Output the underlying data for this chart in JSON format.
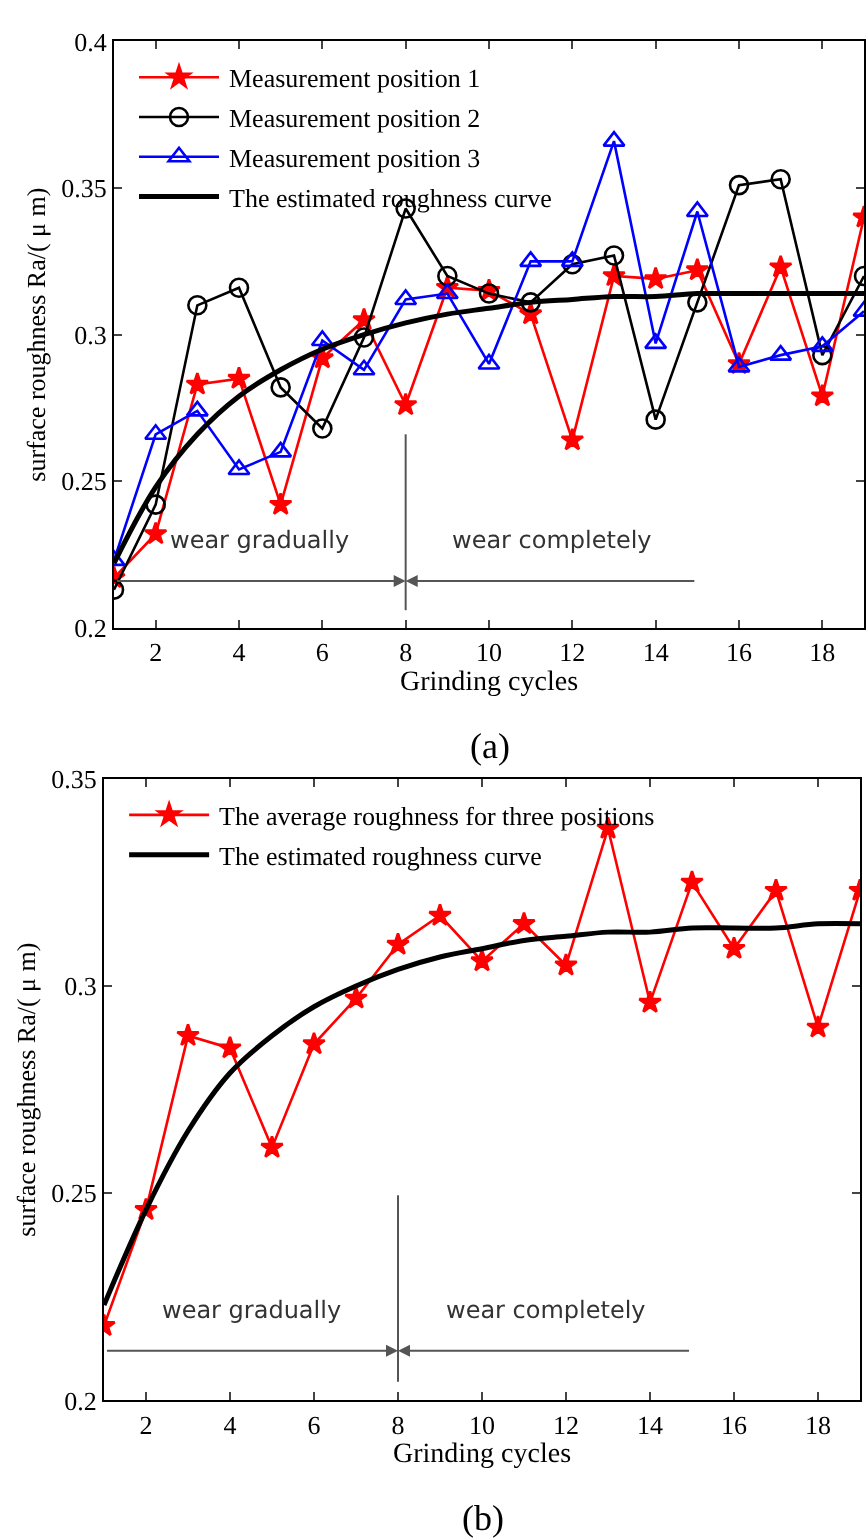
{
  "chart_data": [
    {
      "type": "line",
      "xlabel": "Grinding cycles",
      "ylabel": "surface roughness Ra/( μ m)",
      "x": [
        1,
        2,
        3,
        4,
        5,
        6,
        7,
        8,
        9,
        10,
        11,
        12,
        13,
        14,
        15,
        16,
        17,
        18,
        19
      ],
      "series": [
        {
          "name": "Measurement position 1",
          "color": "#ff0000",
          "marker": "star",
          "values": [
            0.217,
            0.232,
            0.283,
            0.285,
            0.242,
            0.292,
            0.305,
            0.276,
            0.316,
            0.315,
            0.307,
            0.264,
            0.32,
            0.319,
            0.322,
            0.29,
            0.323,
            0.279,
            0.34
          ]
        },
        {
          "name": "Measurement position 2",
          "color": "#000000",
          "marker": "circle",
          "values": [
            0.213,
            0.242,
            0.31,
            0.316,
            0.282,
            0.268,
            0.299,
            0.343,
            0.32,
            0.314,
            0.311,
            0.324,
            0.327,
            0.271,
            0.311,
            0.351,
            0.353,
            0.293,
            0.32
          ]
        },
        {
          "name": "Measurement position 3",
          "color": "#0000ff",
          "marker": "triangle",
          "values": [
            0.223,
            0.266,
            0.274,
            0.254,
            0.26,
            0.298,
            0.288,
            0.312,
            0.314,
            0.29,
            0.325,
            0.325,
            0.366,
            0.297,
            0.342,
            0.289,
            0.293,
            0.296,
            0.308
          ]
        },
        {
          "name": "The estimated roughness curve",
          "color": "#000000",
          "marker": "none",
          "values": [
            0.222,
            0.248,
            0.266,
            0.279,
            0.288,
            0.295,
            0.3,
            0.304,
            0.307,
            0.309,
            0.311,
            0.312,
            0.313,
            0.313,
            0.314,
            0.314,
            0.314,
            0.314,
            0.314
          ]
        }
      ],
      "xlim": [
        1,
        19
      ],
      "xticks": [
        2,
        4,
        6,
        8,
        10,
        12,
        14,
        16,
        18
      ],
      "ylim": [
        0.2,
        0.4
      ],
      "yticks": [
        0.2,
        0.25,
        0.3,
        0.35,
        0.4
      ],
      "legend": "top left",
      "ref_lines": [
        {
          "axis": "x",
          "value": 8
        }
      ],
      "annotations": [
        "wear gradually",
        "wear completely",
        "(a)"
      ]
    },
    {
      "type": "line",
      "xlabel": "Grinding cycles",
      "ylabel": "surface roughness Ra/( μ m)",
      "x": [
        1,
        2,
        3,
        4,
        5,
        6,
        7,
        8,
        9,
        10,
        11,
        12,
        13,
        14,
        15,
        16,
        17,
        18,
        19
      ],
      "series": [
        {
          "name": "The average roughness for three positions",
          "color": "#ff0000",
          "marker": "star",
          "values": [
            0.218,
            0.246,
            0.288,
            0.285,
            0.261,
            0.286,
            0.297,
            0.31,
            0.317,
            0.306,
            0.315,
            0.305,
            0.338,
            0.296,
            0.325,
            0.309,
            0.323,
            0.29,
            0.323
          ]
        },
        {
          "name": "The estimated roughness curve",
          "color": "#000000",
          "marker": "none",
          "values": [
            0.223,
            0.246,
            0.265,
            0.279,
            0.288,
            0.295,
            0.3,
            0.304,
            0.307,
            0.309,
            0.311,
            0.312,
            0.313,
            0.313,
            0.314,
            0.314,
            0.314,
            0.315,
            0.315
          ]
        }
      ],
      "xlim": [
        1,
        19
      ],
      "xticks": [
        2,
        4,
        6,
        8,
        10,
        12,
        14,
        16,
        18
      ],
      "ylim": [
        0.2,
        0.35
      ],
      "yticks": [
        0.2,
        0.25,
        0.3,
        0.35
      ],
      "legend": "top left",
      "ref_lines": [
        {
          "axis": "x",
          "value": 8
        }
      ],
      "annotations": [
        "wear gradually",
        "wear completely",
        "(b)"
      ]
    }
  ]
}
